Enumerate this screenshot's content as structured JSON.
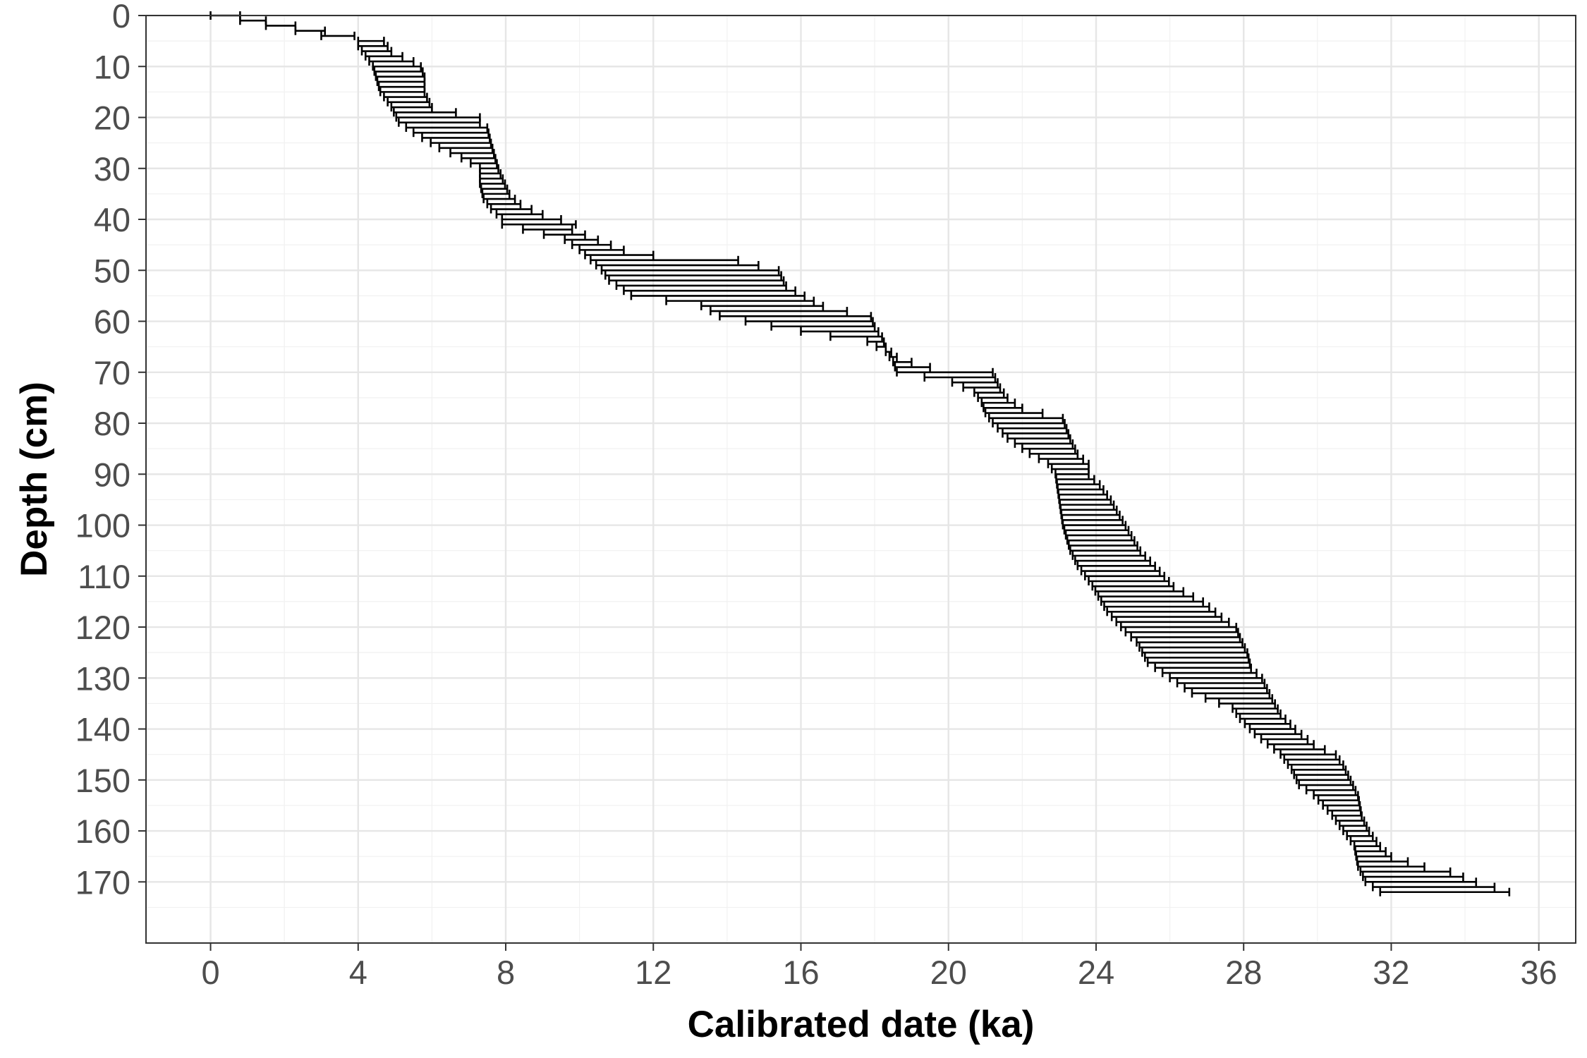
{
  "chart_data": {
    "type": "errorbar-range",
    "xlabel": "Calibrated date (ka)",
    "ylabel": "Depth (cm)",
    "xlim": [
      -1.75,
      37.0
    ],
    "ylim": [
      0,
      182
    ],
    "y_reversed": true,
    "x_ticks": [
      0,
      4,
      8,
      12,
      16,
      20,
      24,
      28,
      32,
      36
    ],
    "y_ticks": [
      0,
      10,
      20,
      30,
      40,
      50,
      60,
      70,
      80,
      90,
      100,
      110,
      120,
      130,
      140,
      150,
      160,
      170
    ],
    "grid": true,
    "depth_step": 1,
    "min_profile": [
      [
        0,
        0
      ],
      [
        1,
        0.8
      ],
      [
        2,
        1.5
      ],
      [
        3,
        2.3
      ],
      [
        4,
        3.0
      ],
      [
        5,
        4.0
      ],
      [
        6,
        4.0
      ],
      [
        10,
        4.4
      ],
      [
        15,
        4.6
      ],
      [
        17,
        4.8
      ],
      [
        18,
        4.9
      ],
      [
        21,
        5.1
      ],
      [
        23,
        5.5
      ],
      [
        26,
        6.2
      ],
      [
        28,
        6.8
      ],
      [
        30,
        7.3
      ],
      [
        33,
        7.3
      ],
      [
        36,
        7.4
      ],
      [
        38,
        7.6
      ],
      [
        40,
        7.9
      ],
      [
        41,
        7.9
      ],
      [
        44,
        9.6
      ],
      [
        46,
        10.0
      ],
      [
        48,
        10.3
      ],
      [
        50,
        10.6
      ],
      [
        52,
        10.8
      ],
      [
        55,
        11.4
      ],
      [
        57,
        13.3
      ],
      [
        59,
        13.8
      ],
      [
        61,
        15.2
      ],
      [
        63,
        16.8
      ],
      [
        64,
        17.8
      ],
      [
        66,
        18.3
      ],
      [
        68,
        18.5
      ],
      [
        70,
        18.6
      ],
      [
        72,
        20.1
      ],
      [
        74,
        20.7
      ],
      [
        76,
        20.9
      ],
      [
        78,
        21.0
      ],
      [
        80,
        21.2
      ],
      [
        83,
        21.6
      ],
      [
        86,
        22.2
      ],
      [
        88,
        22.7
      ],
      [
        90,
        22.9
      ],
      [
        95,
        23.0
      ],
      [
        100,
        23.1
      ],
      [
        105,
        23.3
      ],
      [
        108,
        23.5
      ],
      [
        112,
        23.9
      ],
      [
        117,
        24.3
      ],
      [
        121,
        24.8
      ],
      [
        123,
        25.1
      ],
      [
        127,
        25.4
      ],
      [
        130,
        26.0
      ],
      [
        133,
        26.6
      ],
      [
        136,
        27.7
      ],
      [
        138,
        27.9
      ],
      [
        141,
        28.3
      ],
      [
        145,
        29.0
      ],
      [
        148,
        29.3
      ],
      [
        151,
        29.5
      ],
      [
        153,
        29.9
      ],
      [
        157,
        30.4
      ],
      [
        160,
        30.7
      ],
      [
        163,
        31.0
      ],
      [
        167,
        31.1
      ],
      [
        170,
        31.3
      ],
      [
        172,
        31.7
      ]
    ],
    "max_profile": [
      [
        0,
        0.8
      ],
      [
        1,
        1.5
      ],
      [
        2,
        2.3
      ],
      [
        3,
        3.1
      ],
      [
        4,
        3.9
      ],
      [
        5,
        4.7
      ],
      [
        7,
        4.9
      ],
      [
        8,
        5.2
      ],
      [
        9,
        5.5
      ],
      [
        10,
        5.7
      ],
      [
        12,
        5.8
      ],
      [
        15,
        5.8
      ],
      [
        18,
        6.0
      ],
      [
        20,
        7.3
      ],
      [
        21,
        7.3
      ],
      [
        22,
        7.5
      ],
      [
        25,
        7.6
      ],
      [
        30,
        7.8
      ],
      [
        35,
        8.1
      ],
      [
        37,
        8.4
      ],
      [
        39,
        9.0
      ],
      [
        40,
        9.5
      ],
      [
        41,
        9.9
      ],
      [
        42,
        9.8
      ],
      [
        44,
        10.5
      ],
      [
        46,
        11.2
      ],
      [
        47,
        12.0
      ],
      [
        48,
        14.3
      ],
      [
        50,
        15.4
      ],
      [
        53,
        15.6
      ],
      [
        55,
        16.1
      ],
      [
        57,
        16.6
      ],
      [
        59,
        17.9
      ],
      [
        61,
        18.0
      ],
      [
        63,
        18.2
      ],
      [
        65,
        18.3
      ],
      [
        67,
        18.6
      ],
      [
        68,
        19.0
      ],
      [
        69,
        19.5
      ],
      [
        70,
        21.2
      ],
      [
        73,
        21.4
      ],
      [
        75,
        21.6
      ],
      [
        77,
        22.0
      ],
      [
        79,
        23.1
      ],
      [
        81,
        23.2
      ],
      [
        83,
        23.3
      ],
      [
        86,
        23.5
      ],
      [
        88,
        23.8
      ],
      [
        90,
        23.8
      ],
      [
        92,
        24.1
      ],
      [
        95,
        24.4
      ],
      [
        100,
        24.8
      ],
      [
        105,
        25.2
      ],
      [
        108,
        25.6
      ],
      [
        112,
        26.1
      ],
      [
        115,
        26.9
      ],
      [
        118,
        27.4
      ],
      [
        120,
        27.8
      ],
      [
        122,
        27.9
      ],
      [
        125,
        28.1
      ],
      [
        128,
        28.2
      ],
      [
        130,
        28.5
      ],
      [
        133,
        28.7
      ],
      [
        137,
        29.0
      ],
      [
        140,
        29.4
      ],
      [
        143,
        29.9
      ],
      [
        145,
        30.5
      ],
      [
        147,
        30.7
      ],
      [
        150,
        30.9
      ],
      [
        153,
        31.1
      ],
      [
        157,
        31.2
      ],
      [
        160,
        31.4
      ],
      [
        163,
        31.7
      ],
      [
        165,
        32.0
      ],
      [
        167,
        32.9
      ],
      [
        168,
        33.6
      ],
      [
        170,
        34.3
      ],
      [
        171,
        34.8
      ],
      [
        172,
        35.2
      ]
    ]
  }
}
